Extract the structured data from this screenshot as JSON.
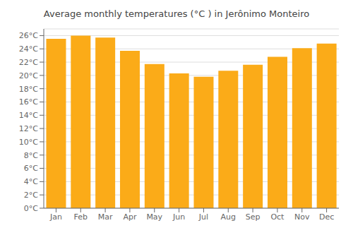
{
  "chart_data": {
    "type": "bar",
    "title": "Average monthly temperatures (°C ) in Jerônimo Monteiro",
    "categories": [
      "Jan",
      "Feb",
      "Mar",
      "Apr",
      "May",
      "Jun",
      "Jul",
      "Aug",
      "Sep",
      "Oct",
      "Nov",
      "Dec"
    ],
    "values": [
      25.5,
      26.0,
      25.7,
      23.7,
      21.7,
      20.3,
      19.8,
      20.7,
      21.6,
      22.8,
      24.1,
      24.8
    ],
    "color": "#FBAB18",
    "ylim": [
      0,
      27
    ],
    "yticks": [
      {
        "value": 0,
        "label": "0°C"
      },
      {
        "value": 2,
        "label": "2°C"
      },
      {
        "value": 4,
        "label": "4°C"
      },
      {
        "value": 6,
        "label": "6°C"
      },
      {
        "value": 8,
        "label": "8°C"
      },
      {
        "value": 10,
        "label": "10°C"
      },
      {
        "value": 12,
        "label": "12°C"
      },
      {
        "value": 14,
        "label": "14°C"
      },
      {
        "value": 16,
        "label": "16°C"
      },
      {
        "value": 18,
        "label": "18°C"
      },
      {
        "value": 20,
        "label": "20°C"
      },
      {
        "value": 22,
        "label": "22°C"
      },
      {
        "value": 24,
        "label": "24°C"
      },
      {
        "value": 26,
        "label": "26°C"
      }
    ],
    "grid": true
  }
}
